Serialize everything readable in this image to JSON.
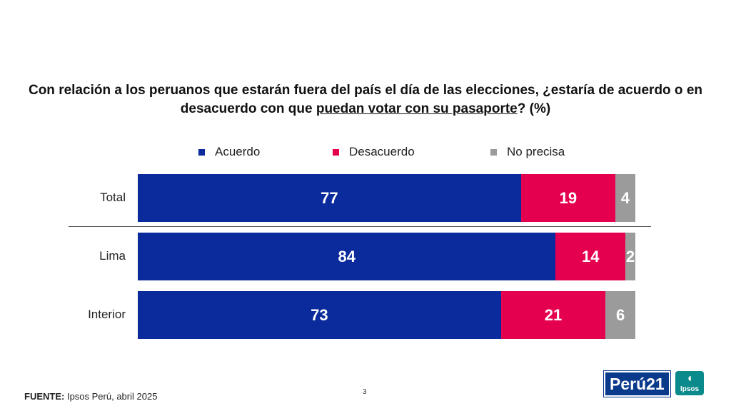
{
  "title": {
    "line1": "Con relación a los peruanos que estarán fuera del país el día de las elecciones, ¿estaría de acuerdo o en",
    "line2_pre": "desacuerdo con que ",
    "line2_underlined": "puedan votar con su pasaporte",
    "line2_post": "? (%)"
  },
  "chart_data": {
    "type": "bar",
    "orientation": "horizontal-stacked",
    "categories": [
      "Total",
      "Lima",
      "Interior"
    ],
    "series": [
      {
        "name": "Acuerdo",
        "values": [
          77,
          84,
          73
        ],
        "color": "#0b2a9c"
      },
      {
        "name": "Desacuerdo",
        "values": [
          19,
          14,
          21
        ],
        "color": "#e5004f"
      },
      {
        "name": "No precisa",
        "values": [
          4,
          2,
          6
        ],
        "color": "#9b9b9b"
      }
    ],
    "xlim": [
      0,
      100
    ],
    "legend": "top-center"
  },
  "footer": {
    "source_label": "FUENTE:",
    "source_text": " Ipsos Perú, abril 2025",
    "page_number": "3"
  },
  "logos": {
    "peru21": "Perú21",
    "ipsos": "Ipsos"
  }
}
